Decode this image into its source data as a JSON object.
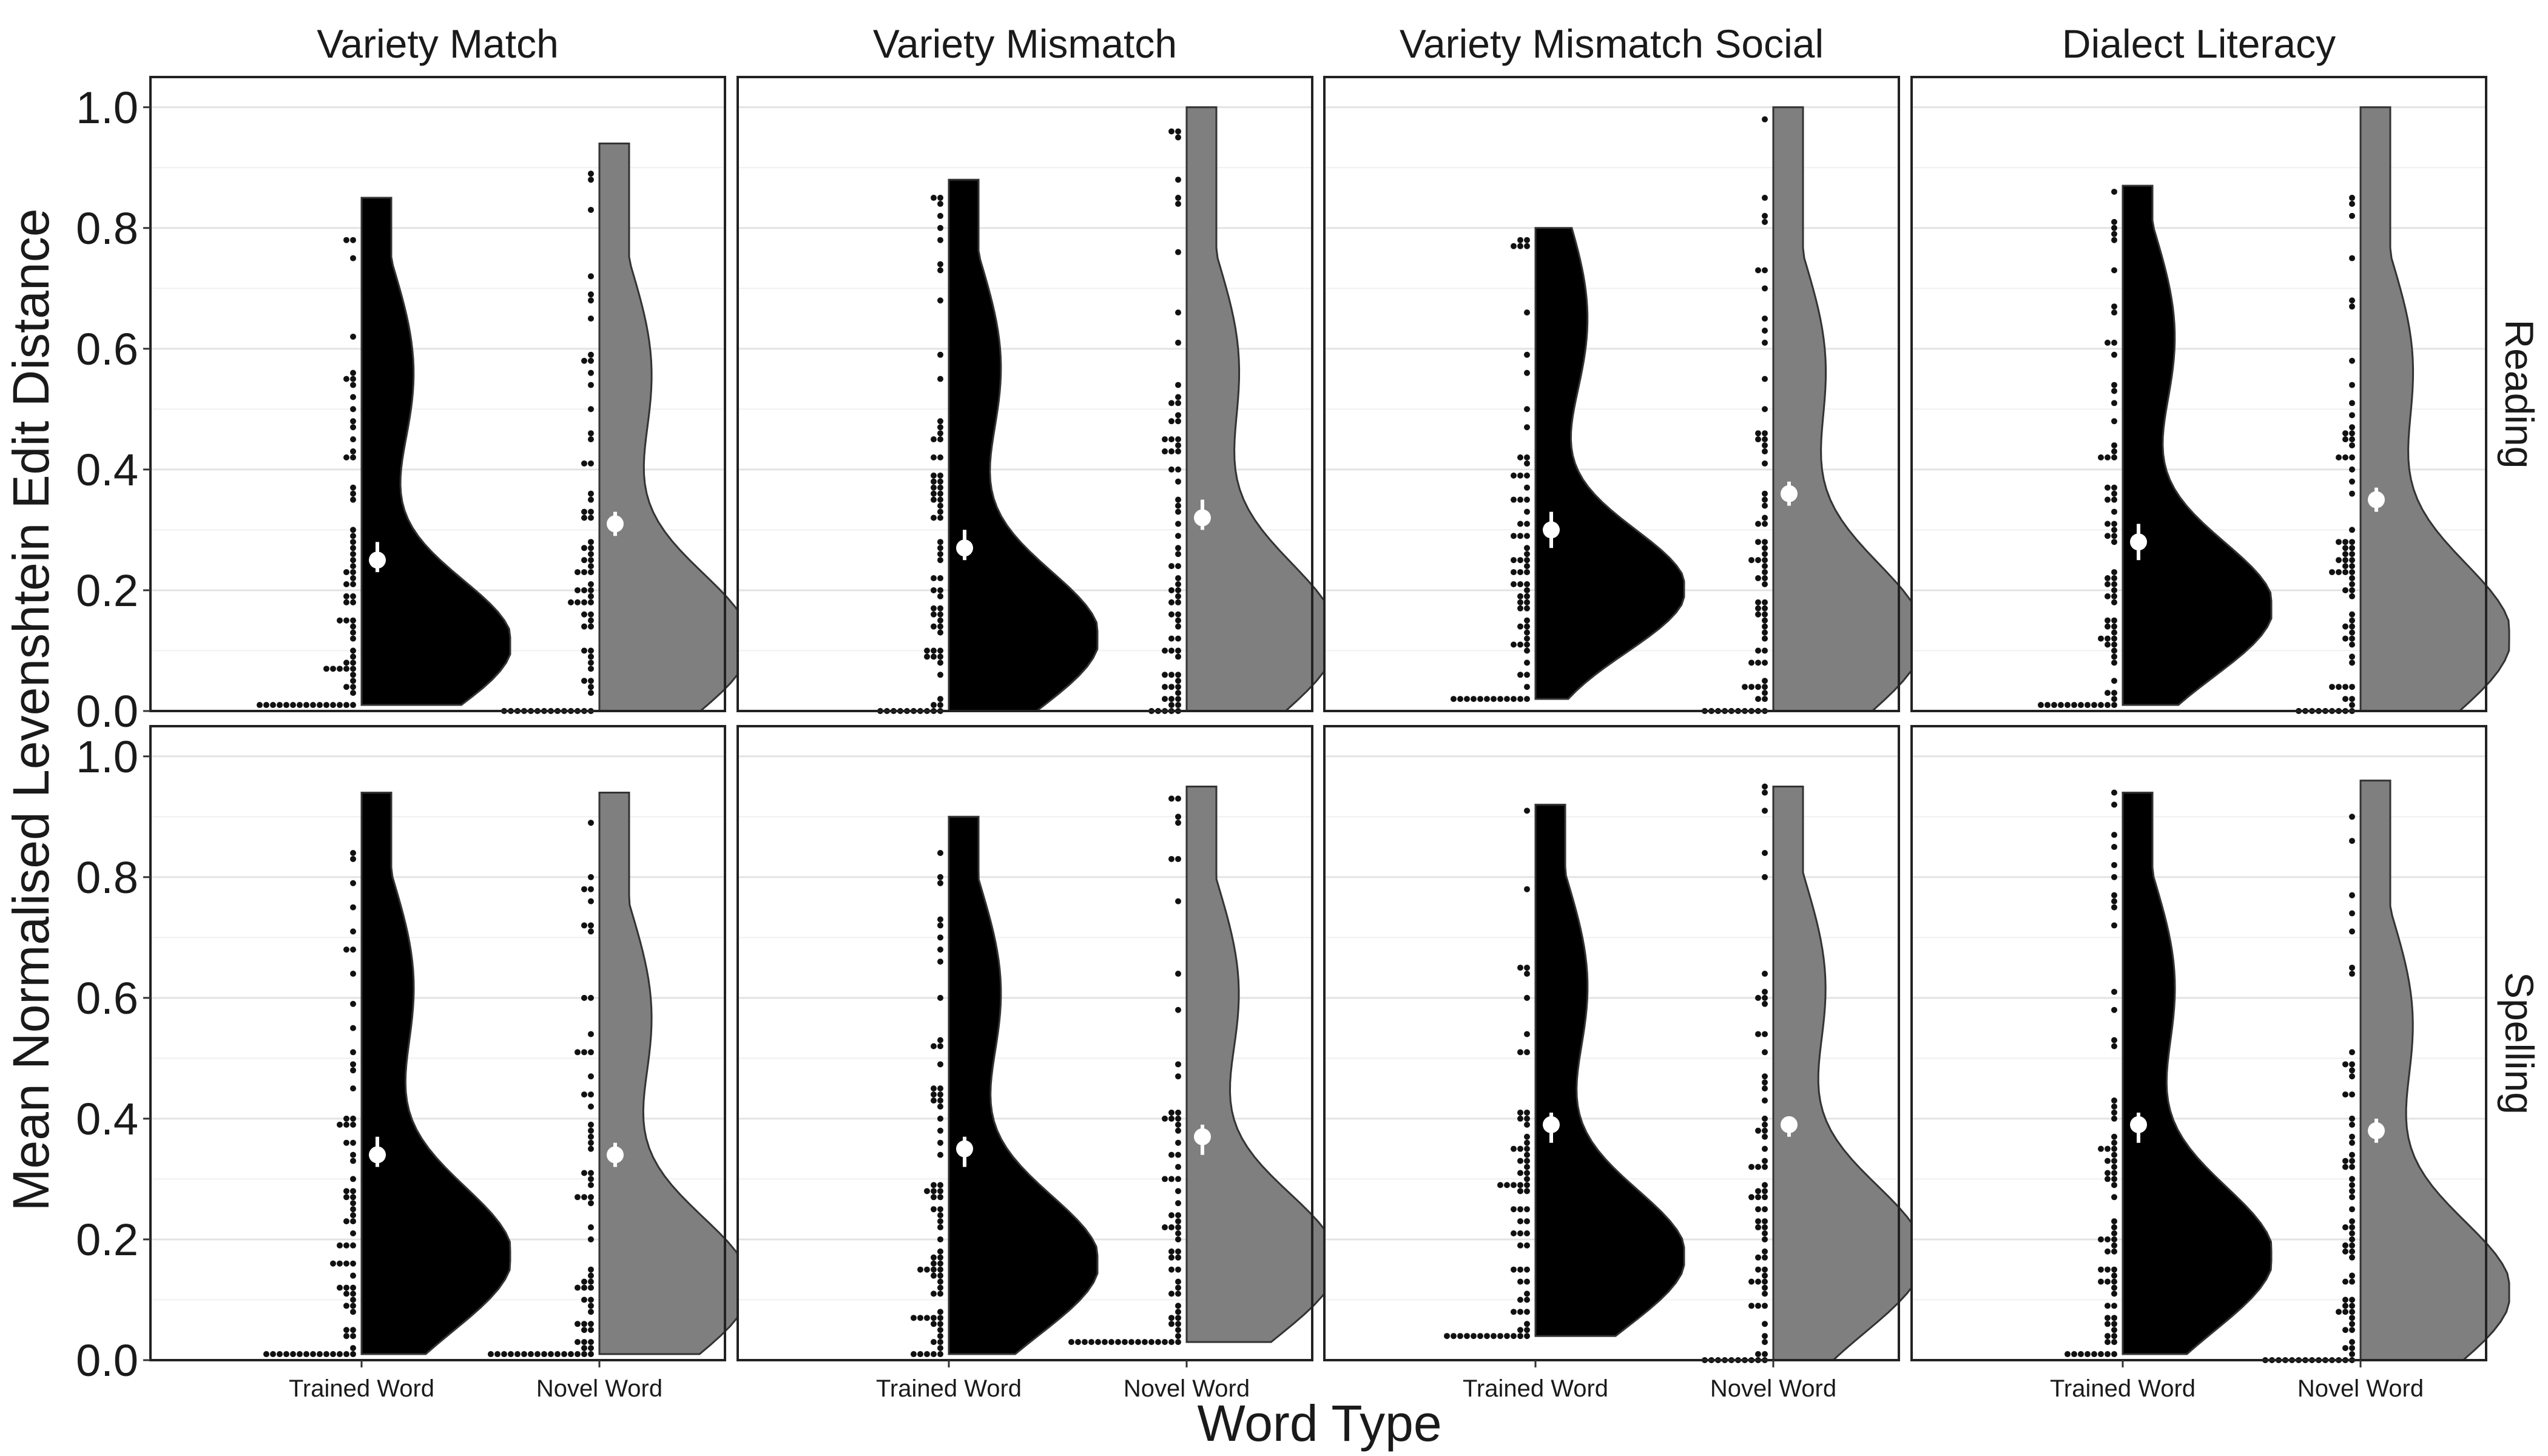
{
  "chart_data": {
    "type": "raincloud",
    "xlabel": "Word Type",
    "ylabel": "Mean Normalised Levenshtein Edit Distance",
    "ylim": [
      0,
      1.05
    ],
    "y_ticks": [
      "0.0",
      "0.2",
      "0.4",
      "0.6",
      "0.8",
      "1.0"
    ],
    "grid": "horizontal",
    "column_facets": [
      "Variety Match",
      "Variety Mismatch",
      "Variety Mismatch Social",
      "Dialect Literacy"
    ],
    "row_facets": [
      "Reading",
      "Spelling"
    ],
    "categories": [
      "Trained Word",
      "Novel Word"
    ],
    "colors": {
      "Trained Word": "#000000",
      "Novel Word": "#7f7f7f",
      "mean_point": "#ffffff"
    },
    "panels": [
      {
        "column": "Variety Match",
        "row": "Reading",
        "groups": [
          {
            "category": "Trained Word",
            "mean": 0.25,
            "ci": [
              0.23,
              0.28
            ],
            "min": 0.01,
            "max": 0.85,
            "mode": 0.11
          },
          {
            "category": "Novel Word",
            "mean": 0.31,
            "ci": [
              0.29,
              0.33
            ],
            "min": 0.0,
            "max": 0.94,
            "mode": 0.11
          }
        ]
      },
      {
        "column": "Variety Mismatch",
        "row": "Reading",
        "groups": [
          {
            "category": "Trained Word",
            "mean": 0.27,
            "ci": [
              0.25,
              0.3
            ],
            "min": 0.0,
            "max": 0.88,
            "mode": 0.12
          },
          {
            "category": "Novel Word",
            "mean": 0.32,
            "ci": [
              0.3,
              0.35
            ],
            "min": 0.0,
            "max": 1.0,
            "mode": 0.12
          }
        ]
      },
      {
        "column": "Variety Mismatch Social",
        "row": "Reading",
        "groups": [
          {
            "category": "Trained Word",
            "mean": 0.3,
            "ci": [
              0.27,
              0.33
            ],
            "min": 0.02,
            "max": 0.8,
            "mode": 0.2
          },
          {
            "category": "Novel Word",
            "mean": 0.36,
            "ci": [
              0.34,
              0.38
            ],
            "min": 0.0,
            "max": 1.0,
            "mode": 0.12
          }
        ]
      },
      {
        "column": "Dialect Literacy",
        "row": "Reading",
        "groups": [
          {
            "category": "Trained Word",
            "mean": 0.28,
            "ci": [
              0.25,
              0.31
            ],
            "min": 0.01,
            "max": 0.87,
            "mode": 0.17
          },
          {
            "category": "Novel Word",
            "mean": 0.35,
            "ci": [
              0.33,
              0.37
            ],
            "min": 0.0,
            "max": 1.0,
            "mode": 0.12
          }
        ]
      },
      {
        "column": "Variety Match",
        "row": "Spelling",
        "groups": [
          {
            "category": "Trained Word",
            "mean": 0.34,
            "ci": [
              0.32,
              0.37
            ],
            "min": 0.01,
            "max": 0.94,
            "mode": 0.17
          },
          {
            "category": "Novel Word",
            "mean": 0.34,
            "ci": [
              0.32,
              0.36
            ],
            "min": 0.01,
            "max": 0.94,
            "mode": 0.12
          }
        ]
      },
      {
        "column": "Variety Mismatch",
        "row": "Spelling",
        "groups": [
          {
            "category": "Trained Word",
            "mean": 0.35,
            "ci": [
              0.32,
              0.37
            ],
            "min": 0.01,
            "max": 0.9,
            "mode": 0.16
          },
          {
            "category": "Novel Word",
            "mean": 0.37,
            "ci": [
              0.34,
              0.39
            ],
            "min": 0.03,
            "max": 0.95,
            "mode": 0.16
          }
        ]
      },
      {
        "column": "Variety Mismatch Social",
        "row": "Spelling",
        "groups": [
          {
            "category": "Trained Word",
            "mean": 0.39,
            "ci": [
              0.36,
              0.41
            ],
            "min": 0.04,
            "max": 0.92,
            "mode": 0.17
          },
          {
            "category": "Novel Word",
            "mean": 0.39,
            "ci": [
              0.37,
              0.4
            ],
            "min": 0.0,
            "max": 0.95,
            "mode": 0.17
          }
        ]
      },
      {
        "column": "Dialect Literacy",
        "row": "Spelling",
        "groups": [
          {
            "category": "Trained Word",
            "mean": 0.39,
            "ci": [
              0.36,
              0.41
            ],
            "min": 0.01,
            "max": 0.94,
            "mode": 0.17
          },
          {
            "category": "Novel Word",
            "mean": 0.38,
            "ci": [
              0.36,
              0.4
            ],
            "min": 0.0,
            "max": 0.96,
            "mode": 0.11
          }
        ]
      }
    ]
  }
}
